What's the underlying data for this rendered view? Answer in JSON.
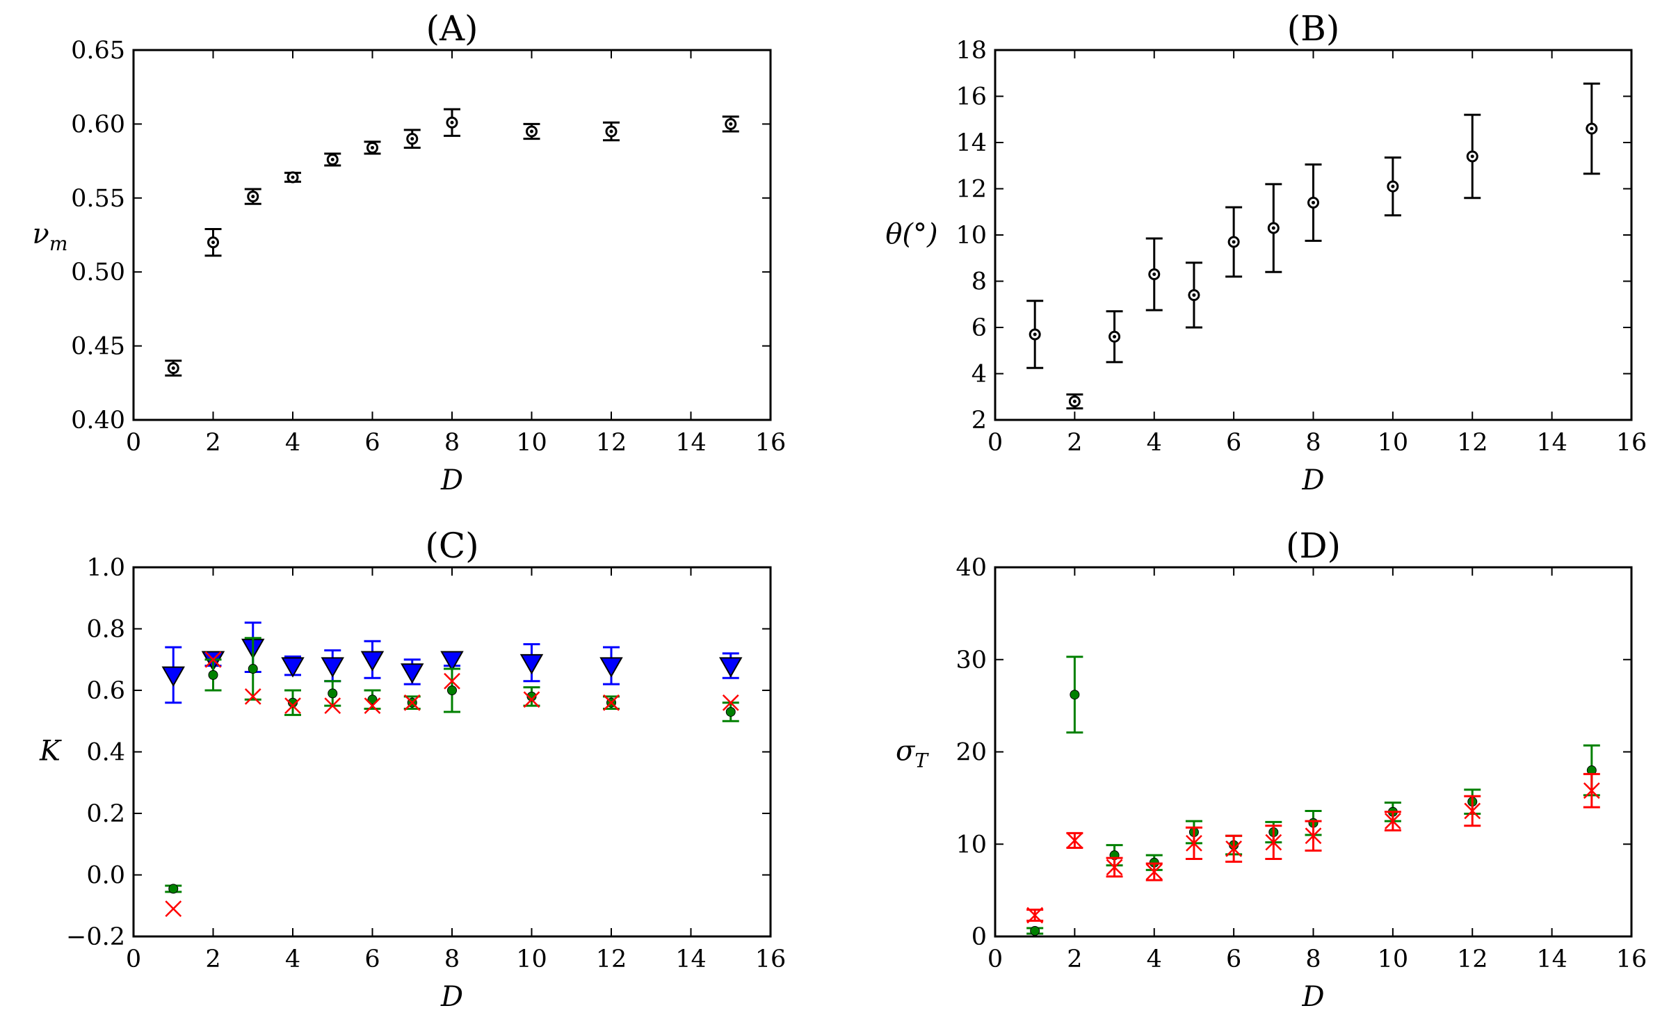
{
  "colors": {
    "black": "#000000",
    "blue": "#0000ff",
    "green": "#008000",
    "red": "#ff0000"
  },
  "chart_data": [
    {
      "type": "scatter",
      "title": "(A)",
      "xlabel": "D",
      "ylabel": "ν_m",
      "xlim": [
        0,
        16
      ],
      "ylim": [
        0.4,
        0.65
      ],
      "xticks": [
        "0",
        "2",
        "4",
        "6",
        "8",
        "10",
        "12",
        "14",
        "16"
      ],
      "yticks": [
        "0.40",
        "0.45",
        "0.50",
        "0.55",
        "0.60",
        "0.65"
      ],
      "series": [
        {
          "name": "ν_m",
          "marker": "open-circle",
          "color": "#000000",
          "x": [
            1,
            2,
            3,
            4,
            5,
            6,
            7,
            8,
            10,
            12,
            15
          ],
          "y": [
            0.435,
            0.52,
            0.551,
            0.564,
            0.576,
            0.584,
            0.59,
            0.601,
            0.595,
            0.595,
            0.6
          ],
          "err": [
            0.005,
            0.009,
            0.005,
            0.003,
            0.004,
            0.004,
            0.006,
            0.009,
            0.005,
            0.006,
            0.005
          ]
        }
      ]
    },
    {
      "type": "scatter",
      "title": "(B)",
      "xlabel": "D",
      "ylabel": "θ(°)",
      "xlim": [
        0,
        16
      ],
      "ylim": [
        2,
        18
      ],
      "xticks": [
        "0",
        "2",
        "4",
        "6",
        "8",
        "10",
        "12",
        "14",
        "16"
      ],
      "yticks": [
        "2",
        "4",
        "6",
        "8",
        "10",
        "12",
        "14",
        "16",
        "18"
      ],
      "series": [
        {
          "name": "θ",
          "marker": "open-circle",
          "color": "#000000",
          "x": [
            1,
            2,
            3,
            4,
            5,
            6,
            7,
            8,
            10,
            12,
            15
          ],
          "y": [
            5.7,
            2.8,
            5.6,
            8.3,
            7.4,
            9.7,
            10.3,
            11.4,
            12.1,
            13.4,
            14.6
          ],
          "err": [
            1.45,
            0.3,
            1.1,
            1.55,
            1.4,
            1.5,
            1.9,
            1.65,
            1.25,
            1.8,
            1.95
          ]
        }
      ]
    },
    {
      "type": "scatter",
      "title": "(C)",
      "xlabel": "D",
      "ylabel": "K",
      "xlim": [
        0,
        16
      ],
      "ylim": [
        -0.2,
        1.0
      ],
      "xticks": [
        "0",
        "2",
        "4",
        "6",
        "8",
        "10",
        "12",
        "14",
        "16"
      ],
      "yticks": [
        "−0.2",
        "0.0",
        "0.2",
        "0.4",
        "0.6",
        "0.8",
        "1.0"
      ],
      "series": [
        {
          "name": "blue",
          "marker": "triangle-down",
          "color": "#0000ff",
          "x": [
            1,
            2,
            3,
            4,
            5,
            6,
            7,
            8,
            10,
            12,
            15
          ],
          "y": [
            0.65,
            0.7,
            0.74,
            0.68,
            0.68,
            0.7,
            0.66,
            0.7,
            0.69,
            0.68,
            0.68
          ],
          "err": [
            0.09,
            0.02,
            0.08,
            0.03,
            0.05,
            0.06,
            0.04,
            0.02,
            0.06,
            0.06,
            0.04
          ]
        },
        {
          "name": "green",
          "marker": "dot",
          "color": "#008000",
          "x": [
            1,
            2,
            3,
            4,
            5,
            6,
            7,
            8,
            10,
            12,
            15
          ],
          "y": [
            -0.045,
            0.65,
            0.67,
            0.56,
            0.59,
            0.57,
            0.56,
            0.6,
            0.58,
            0.56,
            0.53
          ],
          "err": [
            0.01,
            0.05,
            0.1,
            0.04,
            0.04,
            0.03,
            0.02,
            0.07,
            0.03,
            0.02,
            0.03
          ]
        },
        {
          "name": "red",
          "marker": "x",
          "color": "#ff0000",
          "x": [
            1,
            2,
            3,
            4,
            5,
            6,
            7,
            8,
            10,
            12,
            15
          ],
          "y": [
            -0.11,
            0.7,
            0.58,
            0.55,
            0.55,
            0.55,
            0.56,
            0.63,
            0.57,
            0.56,
            0.56
          ],
          "err": [
            0,
            0,
            0,
            0,
            0,
            0,
            0,
            0,
            0,
            0,
            0
          ]
        }
      ]
    },
    {
      "type": "scatter",
      "title": "(D)",
      "xlabel": "D",
      "ylabel": "σ_T",
      "xlim": [
        0,
        16
      ],
      "ylim": [
        0,
        40
      ],
      "xticks": [
        "0",
        "2",
        "4",
        "6",
        "8",
        "10",
        "12",
        "14",
        "16"
      ],
      "yticks": [
        "0",
        "10",
        "20",
        "30",
        "40"
      ],
      "series": [
        {
          "name": "green",
          "marker": "dot",
          "color": "#008000",
          "x": [
            1,
            2,
            3,
            4,
            5,
            6,
            7,
            8,
            10,
            12,
            15
          ],
          "y": [
            0.6,
            26.2,
            8.8,
            8.0,
            11.3,
            9.9,
            11.3,
            12.3,
            13.5,
            14.6,
            18.0
          ],
          "err": [
            0.3,
            4.1,
            1.1,
            0.8,
            1.2,
            1.0,
            1.1,
            1.3,
            1.0,
            1.3,
            2.7
          ]
        },
        {
          "name": "red",
          "marker": "x",
          "color": "#ff0000",
          "x": [
            1,
            2,
            3,
            4,
            5,
            6,
            7,
            8,
            10,
            12,
            15
          ],
          "y": [
            2.3,
            10.4,
            7.5,
            7.0,
            10.1,
            9.5,
            10.2,
            10.9,
            12.5,
            13.6,
            15.8
          ],
          "err": [
            0.6,
            0.8,
            1.0,
            0.9,
            1.7,
            1.4,
            1.8,
            1.6,
            1.0,
            1.6,
            1.8
          ]
        }
      ]
    }
  ]
}
